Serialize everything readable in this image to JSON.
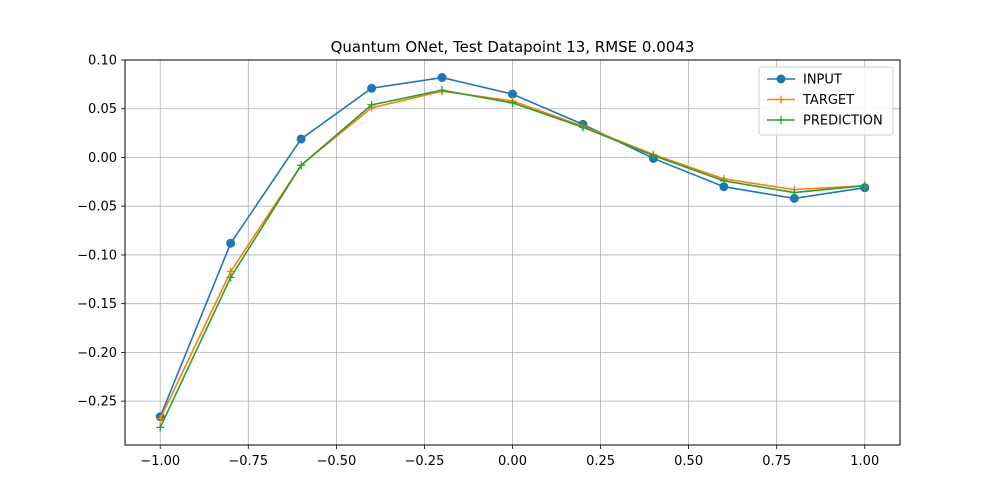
{
  "chart_data": {
    "type": "line",
    "title": "Quantum ONet, Test Datapoint 13, RMSE 0.0043",
    "xlabel": "",
    "ylabel": "",
    "xlim": [
      -1.1,
      1.1
    ],
    "ylim": [
      -0.295,
      0.1
    ],
    "grid": true,
    "legend_position": "top-right",
    "x_ticks": [
      -1.0,
      -0.75,
      -0.5,
      -0.25,
      0.0,
      0.25,
      0.5,
      0.75,
      1.0
    ],
    "x_tick_labels": [
      "−1.00",
      "−0.75",
      "−0.50",
      "−0.25",
      "0.00",
      "0.25",
      "0.50",
      "0.75",
      "1.00"
    ],
    "y_ticks": [
      -0.25,
      -0.2,
      -0.15,
      -0.1,
      -0.05,
      0.0,
      0.05,
      0.1
    ],
    "y_tick_labels": [
      "−0.25",
      "−0.20",
      "−0.15",
      "−0.10",
      "−0.05",
      "0.00",
      "0.05",
      "0.10"
    ],
    "x": [
      -1.0,
      -0.8,
      -0.6,
      -0.4,
      -0.2,
      0.0,
      0.2,
      0.4,
      0.6,
      0.8,
      1.0
    ],
    "series": [
      {
        "name": "INPUT",
        "color": "#1f77b4",
        "marker": "circle",
        "values": [
          -0.266,
          -0.088,
          0.019,
          0.071,
          0.082,
          0.065,
          0.034,
          -0.001,
          -0.03,
          -0.042,
          -0.031
        ]
      },
      {
        "name": "TARGET",
        "color": "#ff7f0e",
        "marker": "plus",
        "values": [
          -0.268,
          -0.117,
          -0.008,
          0.051,
          0.068,
          0.058,
          0.032,
          0.003,
          -0.022,
          -0.033,
          -0.029
        ]
      },
      {
        "name": "PREDICTION",
        "color": "#2ca02c",
        "marker": "plus",
        "values": [
          -0.277,
          -0.123,
          -0.008,
          0.054,
          0.069,
          0.056,
          0.031,
          0.002,
          -0.024,
          -0.036,
          -0.029
        ]
      }
    ]
  }
}
